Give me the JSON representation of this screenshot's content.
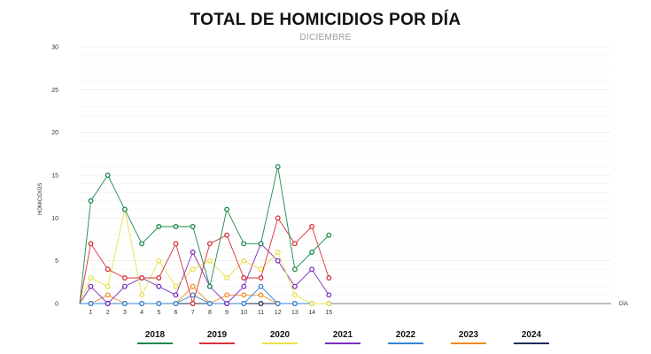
{
  "title": "TOTAL DE HOMICIDIOS POR DÍA",
  "subtitle": "DICIEMBRE",
  "chart_data": {
    "type": "line",
    "title": "TOTAL DE HOMICIDIOS POR DÍA",
    "subtitle": "DICIEMBRE",
    "xlabel": "DÍA",
    "ylabel": "HOMICIDIOS",
    "ylim": [
      0,
      30
    ],
    "yticks": [
      0,
      5,
      10,
      15,
      20,
      25,
      30
    ],
    "x": [
      1,
      2,
      3,
      4,
      5,
      6,
      7,
      8,
      9,
      10,
      11,
      12,
      13,
      14,
      15
    ],
    "grid": true,
    "legend_position": "bottom",
    "series": [
      {
        "name": "2018",
        "color": "#1a8a4a",
        "values": [
          12,
          15,
          11,
          7,
          9,
          9,
          9,
          2,
          11,
          7,
          7,
          16,
          4,
          6,
          8
        ]
      },
      {
        "name": "2019",
        "color": "#d6303a",
        "values": [
          7,
          4,
          3,
          3,
          3,
          7,
          0,
          7,
          8,
          3,
          3,
          10,
          7,
          9,
          3
        ]
      },
      {
        "name": "2020",
        "color": "#e8e04a",
        "values": [
          3,
          2,
          11,
          1,
          5,
          2,
          4,
          5,
          3,
          5,
          4,
          6,
          1,
          0,
          0
        ]
      },
      {
        "name": "2021",
        "color": "#7b2fbf",
        "values": [
          2,
          0,
          2,
          3,
          2,
          1,
          6,
          2,
          0,
          2,
          7,
          5,
          2,
          4,
          1
        ]
      },
      {
        "name": "2022",
        "color": "#2f86d6",
        "values": [
          0,
          0,
          0,
          0,
          0,
          0,
          1,
          0,
          0,
          0,
          2,
          0,
          0,
          0,
          0
        ]
      },
      {
        "name": "2023",
        "color": "#f08a24",
        "values": [
          0,
          1,
          0,
          0,
          0,
          0,
          2,
          0,
          1,
          1,
          1,
          0,
          0,
          0,
          0
        ]
      },
      {
        "name": "2024",
        "color": "#1c2d5a",
        "values": [
          0,
          0,
          0,
          0,
          0,
          0,
          0,
          0,
          0,
          0,
          0,
          0,
          0,
          0,
          0
        ]
      }
    ]
  }
}
